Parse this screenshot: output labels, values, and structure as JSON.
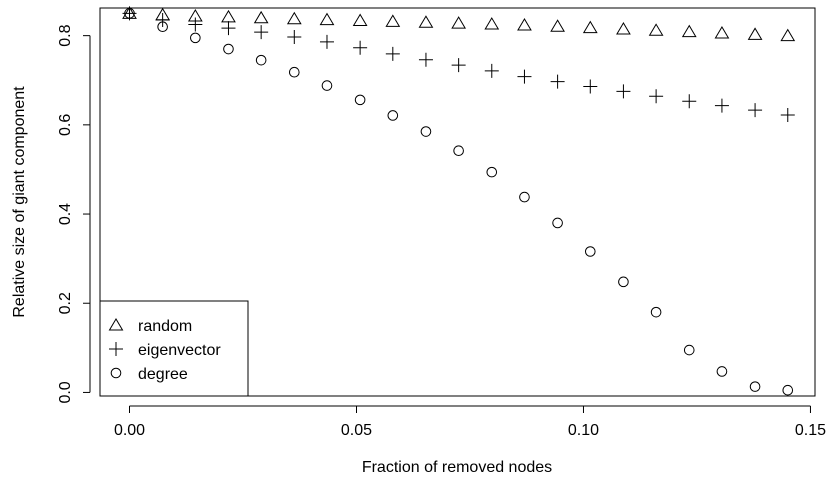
{
  "chart_data": {
    "type": "scatter",
    "title": "",
    "xlabel": "Fraction of removed nodes",
    "ylabel": "Relative size of giant component",
    "xlim": [
      -0.0065,
      0.151
    ],
    "ylim": [
      -0.008,
      0.862
    ],
    "x_ticks": [
      0.0,
      0.05,
      0.1,
      0.15
    ],
    "x_tick_labels": [
      "0.00",
      "0.05",
      "0.10",
      "0.15"
    ],
    "y_ticks": [
      0.0,
      0.2,
      0.4,
      0.6,
      0.8
    ],
    "y_tick_labels": [
      "0.0",
      "0.2",
      "0.4",
      "0.6",
      "0.8"
    ],
    "grid": false,
    "legend_position": "bottom-left",
    "x": [
      0.0,
      0.0073,
      0.0145,
      0.0218,
      0.029,
      0.0363,
      0.0435,
      0.0508,
      0.058,
      0.0653,
      0.0725,
      0.0798,
      0.087,
      0.0943,
      0.1015,
      0.1088,
      0.116,
      0.1233,
      0.1305,
      0.1378,
      0.145
    ],
    "series": [
      {
        "name": "random",
        "marker": "triangle",
        "values": [
          0.85,
          0.847,
          0.844,
          0.842,
          0.84,
          0.838,
          0.836,
          0.834,
          0.832,
          0.83,
          0.828,
          0.826,
          0.824,
          0.821,
          0.818,
          0.815,
          0.812,
          0.809,
          0.806,
          0.803,
          0.8
        ]
      },
      {
        "name": "eigenvector",
        "marker": "plus",
        "values": [
          0.85,
          0.835,
          0.825,
          0.817,
          0.808,
          0.797,
          0.786,
          0.773,
          0.759,
          0.746,
          0.734,
          0.721,
          0.708,
          0.697,
          0.686,
          0.675,
          0.664,
          0.653,
          0.643,
          0.633,
          0.622
        ]
      },
      {
        "name": "degree",
        "marker": "circle",
        "values": [
          0.85,
          0.82,
          0.795,
          0.77,
          0.745,
          0.718,
          0.688,
          0.656,
          0.621,
          0.585,
          0.542,
          0.494,
          0.438,
          0.38,
          0.316,
          0.248,
          0.18,
          0.095,
          0.047,
          0.013,
          0.005
        ]
      }
    ]
  }
}
